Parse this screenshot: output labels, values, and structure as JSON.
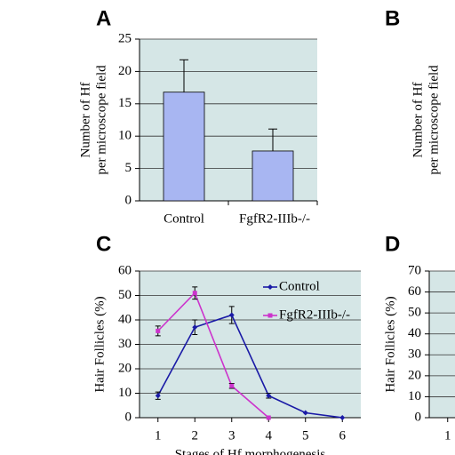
{
  "chart_data": [
    {
      "type": "bar",
      "panel": "A",
      "ylabel": [
        "Number of Hf",
        "per microscope field"
      ],
      "categories": [
        "Control",
        "FgfR2-IIIb-/-"
      ],
      "values": [
        16.8,
        7.7
      ],
      "errors": [
        5,
        3.4
      ],
      "color": "#a8b6f2",
      "ylim": [
        0,
        25
      ],
      "yticks": [
        0,
        5,
        10,
        15,
        20,
        25
      ],
      "grid": true
    },
    {
      "type": "partial",
      "panel": "B",
      "ylabel": [
        "Number of Hf",
        "per microscope field"
      ]
    },
    {
      "type": "line",
      "panel": "C",
      "ylabel": [
        "Hair Follicles (%)"
      ],
      "xlabel": "Stages of Hf morphogenesis",
      "x": [
        1,
        2,
        3,
        4,
        5,
        6
      ],
      "series": [
        {
          "name": "Control",
          "color": "#1a1aa6",
          "values": [
            9,
            37,
            42,
            9,
            2,
            0
          ],
          "errors": [
            1.5,
            3,
            3.5,
            1,
            0,
            0
          ]
        },
        {
          "name": "FgfR2-IIIb-/-",
          "color": "#cc33cc",
          "values": [
            35.5,
            51,
            13,
            0,
            null,
            null
          ],
          "errors": [
            2,
            2.5,
            1,
            0,
            null,
            null
          ]
        }
      ],
      "xlim": [
        0.5,
        6.5
      ],
      "xticks": [
        1,
        2,
        3,
        4,
        5,
        6
      ],
      "ylim": [
        0,
        60
      ],
      "yticks": [
        0,
        10,
        20,
        30,
        40,
        50,
        60
      ],
      "grid": true,
      "legend": "upper right"
    },
    {
      "type": "line",
      "panel": "D",
      "ylabel": [
        "Hair Follicles (%)"
      ],
      "series": [],
      "xlim": [
        0.5,
        6.5
      ],
      "xticks": [
        1
      ],
      "ylim": [
        0,
        70
      ],
      "yticks": [
        0,
        10,
        20,
        30,
        40,
        50,
        60,
        70
      ],
      "grid": true
    }
  ]
}
